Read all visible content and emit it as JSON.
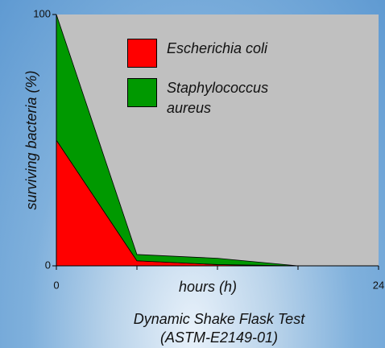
{
  "chart_data": {
    "type": "stacked_area",
    "y_label": "surviving bacteria (%)",
    "x_label": "hours (h)",
    "caption": [
      "Dynamic Shake Flask Test",
      "(ASTM-E2149-01)"
    ],
    "x": [
      0,
      6,
      12,
      18,
      24
    ],
    "series": [
      {
        "name": "Escherichia coli",
        "color": "#ff0000",
        "values": [
          50,
          2,
          0.5,
          0,
          0
        ]
      },
      {
        "name": "Staphylococcus aureus",
        "color": "#009900",
        "values": [
          50,
          2.5,
          2.5,
          0,
          0
        ]
      }
    ],
    "xlim": [
      0,
      24
    ],
    "xticks": [
      0,
      24
    ],
    "ylim": [
      0,
      100
    ],
    "yticks": [
      0,
      100
    ],
    "plot_background": "#c0c0c0"
  }
}
